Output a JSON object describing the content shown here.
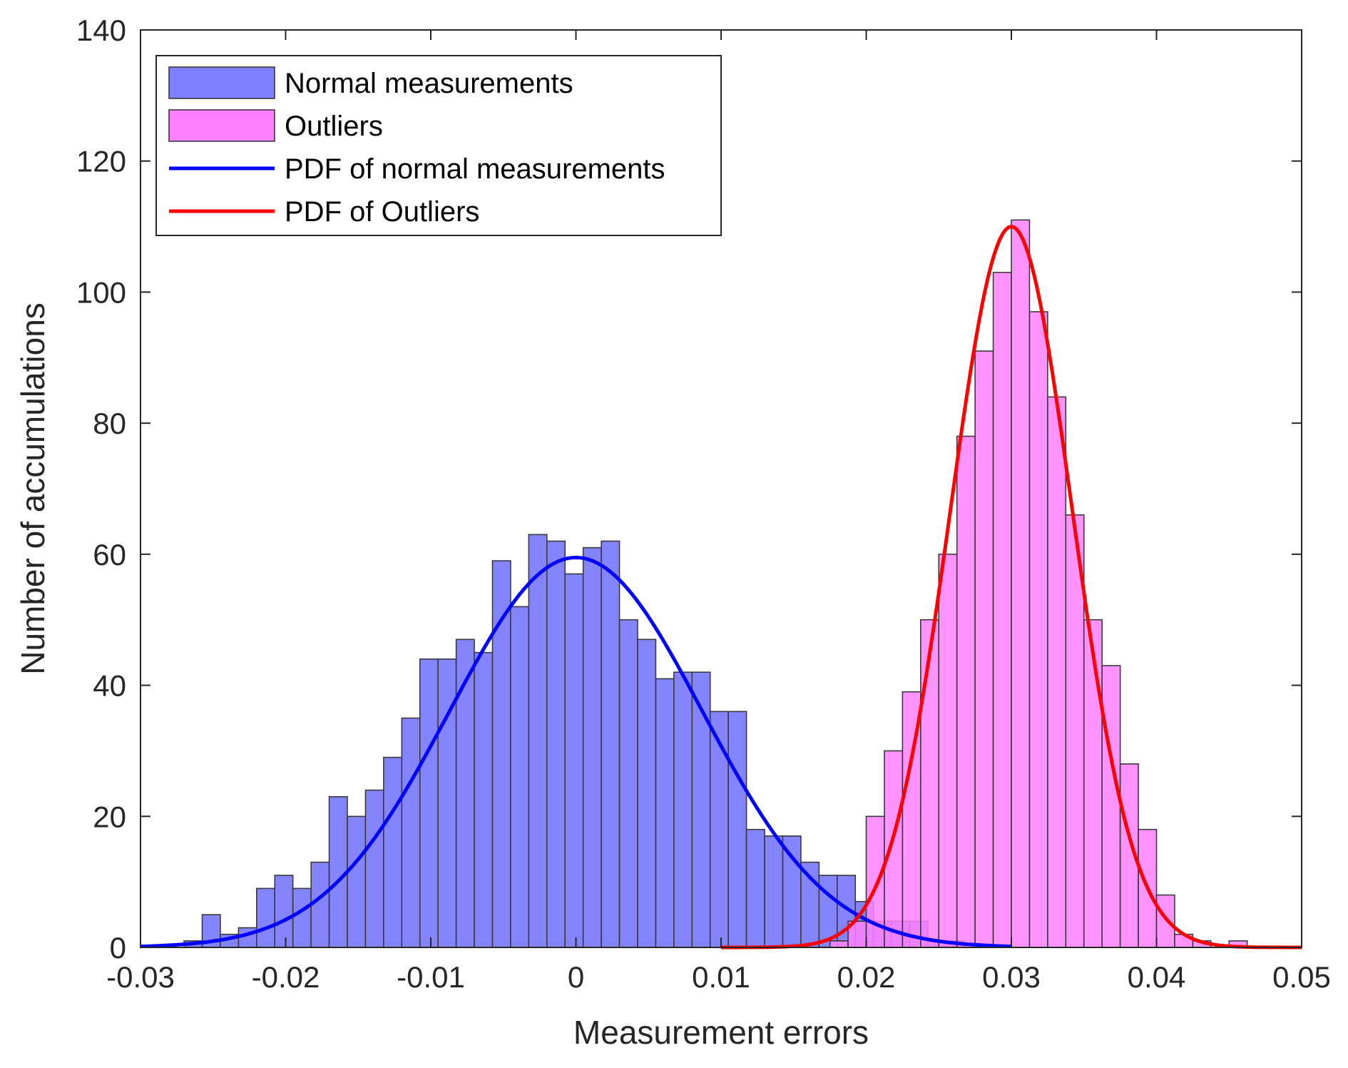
{
  "colors": {
    "normal_fill": "#7f7fff",
    "outlier_fill": "#ff80ff",
    "normal_pdf": "#0000ff",
    "outlier_pdf": "#ff0000",
    "bar_edge": "#3a3a3a",
    "axis": "#262626"
  },
  "chart_data": {
    "type": "bar",
    "title": "",
    "xlabel": "Measurement errors",
    "ylabel": "Number of accumulations",
    "xlim": [
      -0.03,
      0.05
    ],
    "ylim": [
      0,
      140
    ],
    "xticks": [
      "-0.03",
      "-0.02",
      "-0.01",
      "0",
      "0.01",
      "0.02",
      "0.03",
      "0.04",
      "0.05"
    ],
    "xtick_values": [
      -0.03,
      -0.02,
      -0.01,
      0,
      0.01,
      0.02,
      0.03,
      0.04,
      0.05
    ],
    "yticks": [
      "0",
      "20",
      "40",
      "60",
      "80",
      "100",
      "120",
      "140"
    ],
    "ytick_values": [
      0,
      20,
      40,
      60,
      80,
      100,
      120,
      140
    ],
    "grid": false,
    "legend_position": "top-left",
    "legend": [
      {
        "label": "Normal measurements",
        "kind": "patch",
        "color": "#7f7fff"
      },
      {
        "label": "Outliers",
        "kind": "patch",
        "color": "#ff80ff"
      },
      {
        "label": "PDF of normal measurements",
        "kind": "line",
        "color": "#0000ff"
      },
      {
        "label": "PDF of Outliers",
        "kind": "line",
        "color": "#ff0000"
      }
    ],
    "series": [
      {
        "name": "Normal measurements",
        "kind": "histogram",
        "bin_start": -0.027,
        "bin_width": 0.00125,
        "values": [
          1,
          5,
          2,
          3,
          9,
          11,
          9,
          13,
          23,
          20,
          24,
          29,
          35,
          44,
          44,
          47,
          45,
          59,
          52,
          63,
          62,
          57,
          61,
          62,
          50,
          47,
          41,
          42,
          42,
          36,
          36,
          18,
          17,
          17,
          13,
          11,
          11,
          7,
          4,
          4,
          4,
          1,
          1
        ]
      },
      {
        "name": "Outliers",
        "kind": "histogram",
        "bin_start": 0.0175,
        "bin_width": 0.00125,
        "values": [
          1,
          4,
          20,
          30,
          39,
          50,
          60,
          78,
          91,
          103,
          111,
          97,
          84,
          66,
          50,
          43,
          28,
          18,
          8,
          2,
          1,
          0,
          1
        ]
      },
      {
        "name": "PDF of normal measurements",
        "kind": "line",
        "mean": 0,
        "std": 0.0087,
        "peak": 59.5,
        "x_range": [
          -0.03,
          0.03
        ]
      },
      {
        "name": "PDF of Outliers",
        "kind": "line",
        "mean": 0.03,
        "std": 0.0042,
        "peak": 110,
        "x_range": [
          0.01,
          0.05
        ]
      }
    ]
  }
}
